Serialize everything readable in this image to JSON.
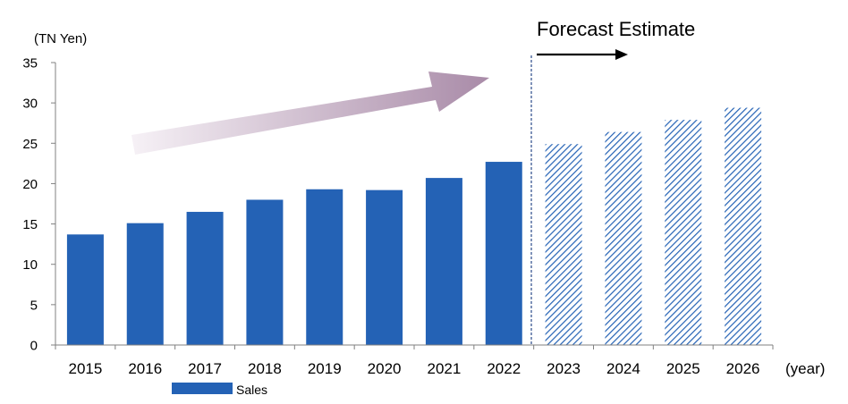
{
  "chart_data": {
    "type": "bar",
    "title": "",
    "ylabel": "(TN Yen)",
    "xlabel": "(year)",
    "ylim": [
      0,
      35
    ],
    "yticks": [
      0,
      5,
      10,
      15,
      20,
      25,
      30,
      35
    ],
    "categories": [
      "2015",
      "2016",
      "2017",
      "2018",
      "2019",
      "2020",
      "2021",
      "2022",
      "2023",
      "2024",
      "2025",
      "2026"
    ],
    "series": [
      {
        "name": "Sales",
        "values": [
          13.7,
          15.1,
          16.5,
          18.0,
          19.3,
          19.2,
          20.7,
          22.7,
          24.9,
          26.4,
          27.9,
          29.4
        ],
        "forecast": [
          false,
          false,
          false,
          false,
          false,
          false,
          false,
          false,
          true,
          true,
          true,
          true
        ]
      }
    ],
    "annotation": "Forecast Estimate",
    "legend": {
      "position": "bottom-left",
      "entries": [
        "Sales"
      ]
    },
    "grid": false,
    "colors": {
      "bar": "#2462b5",
      "forecast_hatch": "#2462b5",
      "axis": "#808080",
      "divider": "#2a4a8a",
      "trend_arrow_start": "#f6f1f6",
      "trend_arrow_end": "#a98ba8"
    }
  }
}
